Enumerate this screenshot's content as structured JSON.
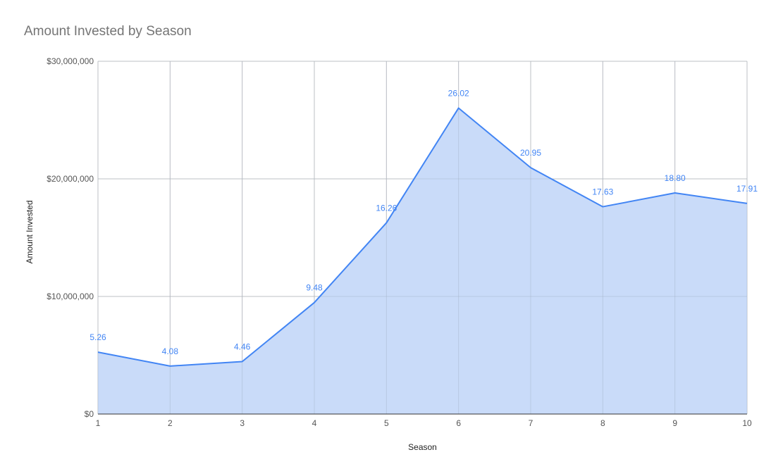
{
  "chart_data": {
    "type": "area",
    "title": "Amount Invested by Season",
    "xlabel": "Season",
    "ylabel": "Amount Invested",
    "x": [
      1,
      2,
      3,
      4,
      5,
      6,
      7,
      8,
      9,
      10
    ],
    "series": [
      {
        "values": [
          5260000,
          4080000,
          4460000,
          9480000,
          16260000,
          26020000,
          20950000,
          17630000,
          18800000,
          17910000
        ],
        "data_labels": [
          "5.26",
          "4.08",
          "4.46",
          "9.48",
          "16.26",
          "26.02",
          "20.95",
          "17.63",
          "18.80",
          "17.91"
        ]
      }
    ],
    "xlim": [
      1,
      10
    ],
    "ylim": [
      0,
      30000000
    ],
    "y_ticks": [
      0,
      10000000,
      20000000,
      30000000
    ],
    "y_tick_labels": [
      "$0",
      "$10,000,000",
      "$20,000,000",
      "$30,000,000"
    ],
    "x_tick_labels": [
      "1",
      "2",
      "3",
      "4",
      "5",
      "6",
      "7",
      "8",
      "9",
      "10"
    ],
    "grid": true,
    "legend": "none",
    "colors": {
      "line": "#4285f4",
      "fill": "#c6d9f9",
      "label": "#4285f4",
      "grid": "#cccccc",
      "axis": "#333333",
      "text": "#555555",
      "title": "#757575"
    }
  }
}
